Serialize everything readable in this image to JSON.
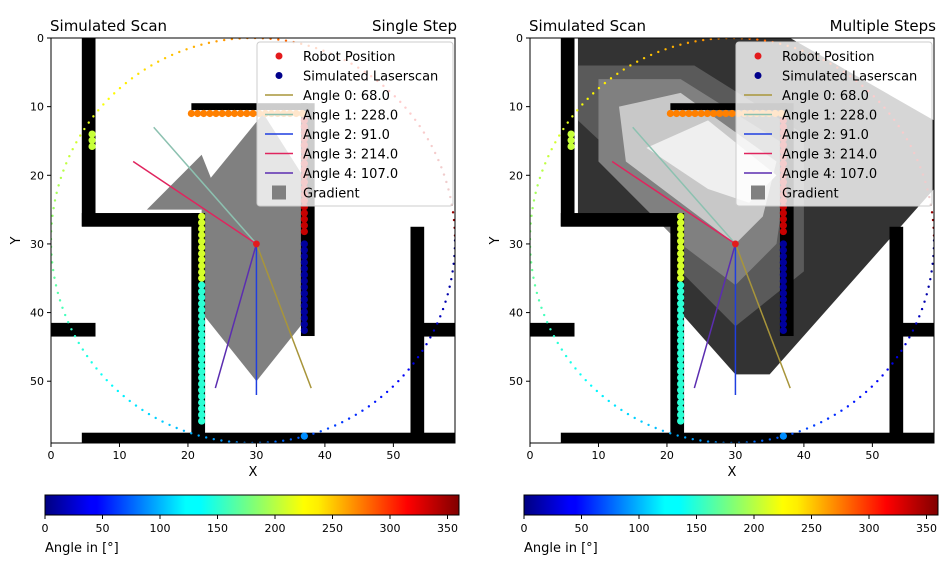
{
  "chart_data": [
    {
      "type": "scatter",
      "title_left": "Simulated Scan",
      "title_right": "Single Step",
      "xlabel": "X",
      "ylabel": "Y",
      "xlim": [
        0,
        59
      ],
      "ylim": [
        59,
        0
      ],
      "xticks": [
        0,
        10,
        20,
        30,
        40,
        50
      ],
      "yticks": [
        0,
        10,
        20,
        30,
        40,
        50
      ],
      "gradient_mode": "single",
      "legend_position": "upper-right",
      "legend": [
        "Robot Position",
        "Simulated Laserscan",
        "Angle 0: 68.0",
        "Angle 1: 228.0",
        "Angle 2: 91.0",
        "Angle 3: 214.0",
        "Angle 4: 107.0",
        "Gradient"
      ],
      "colorbar": {
        "label": "Angle in [°]",
        "range": [
          0,
          360
        ],
        "ticks": [
          0,
          50,
          100,
          150,
          200,
          250,
          300,
          350
        ]
      }
    },
    {
      "type": "scatter",
      "title_left": "Simulated Scan",
      "title_right": "Multiple Steps",
      "xlabel": "X",
      "ylabel": "Y",
      "xlim": [
        0,
        59
      ],
      "ylim": [
        59,
        0
      ],
      "xticks": [
        0,
        10,
        20,
        30,
        40,
        50
      ],
      "yticks": [
        0,
        10,
        20,
        30,
        40,
        50
      ],
      "gradient_mode": "multi",
      "legend_position": "upper-right",
      "legend": [
        "Robot Position",
        "Simulated Laserscan",
        "Angle 0: 68.0",
        "Angle 1: 228.0",
        "Angle 2: 91.0",
        "Angle 3: 214.0",
        "Angle 4: 107.0",
        "Gradient"
      ],
      "colorbar": {
        "label": "Angle in [°]",
        "range": [
          0,
          360
        ],
        "ticks": [
          0,
          50,
          100,
          150,
          200,
          250,
          300,
          350
        ]
      }
    }
  ],
  "robot": {
    "x": 30,
    "y": 30,
    "color": "#e31a1c"
  },
  "scan_circle": {
    "cx": 29.5,
    "cy": 29.5,
    "r": 29.5
  },
  "angle_lines": [
    {
      "angle": 68.0,
      "color": "#a8953a",
      "end": [
        38,
        51
      ]
    },
    {
      "angle": 228.0,
      "color": "#8cc1b0",
      "end": [
        15,
        13
      ]
    },
    {
      "angle": 91.0,
      "color": "#1f3fe0",
      "end": [
        30,
        52
      ]
    },
    {
      "angle": 214.0,
      "color": "#e0245e",
      "end": [
        12,
        18
      ]
    },
    {
      "angle": 107.0,
      "color": "#5b2db0",
      "end": [
        24,
        51
      ]
    }
  ],
  "walls": [
    {
      "x0": 4.5,
      "x1": 6.5,
      "y0": 0,
      "y1": 27.5
    },
    {
      "x0": 4.5,
      "x1": 22.5,
      "y0": 25.5,
      "y1": 27.5
    },
    {
      "x0": 20.5,
      "x1": 22.5,
      "y0": 25.5,
      "y1": 59
    },
    {
      "x0": 4.5,
      "x1": 59,
      "y0": 57.5,
      "y1": 59
    },
    {
      "x0": 0,
      "x1": 6.5,
      "y0": 41.5,
      "y1": 43.5
    },
    {
      "x0": 20.5,
      "x1": 37.5,
      "y0": 9.5,
      "y1": 10.5
    },
    {
      "x0": 36.5,
      "x1": 38.5,
      "y0": 9.5,
      "y1": 43.5
    },
    {
      "x0": 52.5,
      "x1": 54.5,
      "y0": 27.5,
      "y1": 59
    },
    {
      "x0": 52.5,
      "x1": 59,
      "y0": 41.5,
      "y1": 43.5
    }
  ],
  "hit_groups": [
    {
      "angle": 205,
      "x": 6,
      "y0": 14,
      "y1": 16
    },
    {
      "angle": 270,
      "x": [
        20.5,
        37
      ],
      "y": 11
    },
    {
      "angle": 335,
      "x": 37,
      "y0": 12,
      "y1": 29
    },
    {
      "angle": 10,
      "x": 37,
      "y0": 30,
      "y1": 43
    },
    {
      "angle": 210,
      "x": 22,
      "y0": 26,
      "y1": 35
    },
    {
      "angle": 150,
      "x": 22,
      "y0": 36,
      "y1": 56
    },
    {
      "angle": 95,
      "x": 37,
      "y": 58
    }
  ]
}
